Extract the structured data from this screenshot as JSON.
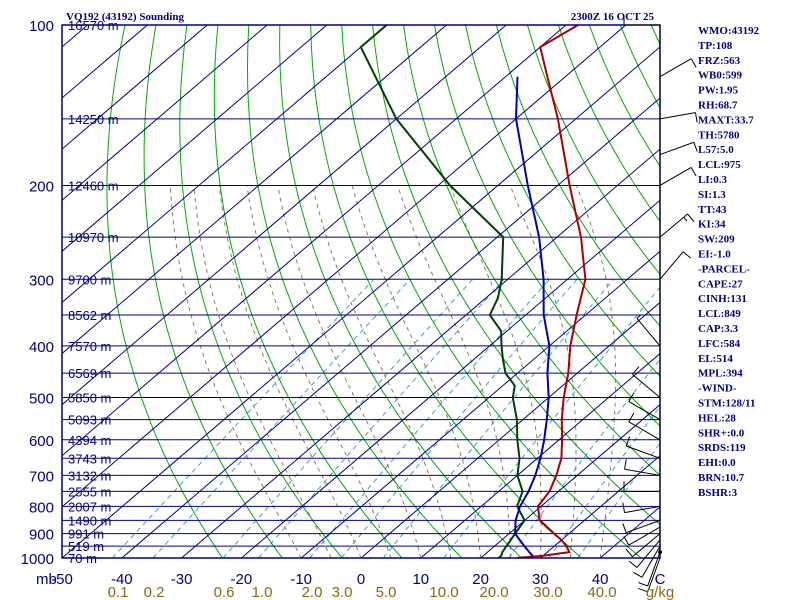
{
  "header": {
    "station": "VQ192 (43192) Sounding",
    "time": "2300Z 16 OCT 25"
  },
  "indices": [
    "WMO:43192",
    "TP:108",
    "FRZ:563",
    "WB0:599",
    "PW:1.95",
    "RH:68.7",
    "MAXT:33.7",
    "TH:5780",
    "L57:5.0",
    "LCL:975",
    "LI:0.3",
    "SI:1.3",
    "TT:43",
    "KI:34",
    "SW:209",
    "EI:-1.0",
    "-PARCEL-",
    "CAPE:27",
    "CINH:131",
    "LCL:849",
    "CAP:3.3",
    "LFC:584",
    "EL:514",
    "MPL:394",
    "-WIND-",
    "STM:128/11",
    "HEL:28",
    "SHR+:0.0",
    "SRDS:119",
    "EHI:0.0",
    "BRN:10.7",
    "BSHR:3"
  ],
  "colors": {
    "frame": "#000080",
    "isobar": "#000080",
    "isotherm": "#000080",
    "dry_adiabat": "#00aa00",
    "moist_adiabat": "#8b7d5a",
    "mixing_ratio": "#3a9fd0",
    "temperature": "#aa0000",
    "dewpoint": "#004000",
    "parcel": "#0000aa",
    "wind_barb": "#000000"
  },
  "chart_data": {
    "type": "line",
    "subtype": "skew-t log-p sounding",
    "yscale": "log",
    "yaxis_reversed": true,
    "ylim": [
      1000,
      100
    ],
    "xlim": [
      -50,
      50
    ],
    "pressure_ticks": [
      100,
      200,
      300,
      400,
      500,
      600,
      700,
      800,
      900,
      1000
    ],
    "pressure_tick_labels": [
      "100",
      "200",
      "300",
      "400",
      "500",
      "600",
      "700",
      "800",
      "900",
      "1000"
    ],
    "height_labels": [
      {
        "p": 100,
        "label": "16570 m"
      },
      {
        "p": 150,
        "label": "14250 m"
      },
      {
        "p": 200,
        "label": "12460 m"
      },
      {
        "p": 250,
        "label": "10970 m"
      },
      {
        "p": 300,
        "label": "9700 m"
      },
      {
        "p": 350,
        "label": "8562 m"
      },
      {
        "p": 400,
        "label": "7570 m"
      },
      {
        "p": 450,
        "label": "6569 m"
      },
      {
        "p": 500,
        "label": "5850 m"
      },
      {
        "p": 550,
        "label": "5093 m"
      },
      {
        "p": 600,
        "label": "4394 m"
      },
      {
        "p": 650,
        "label": "3743 m"
      },
      {
        "p": 700,
        "label": "3132 m"
      },
      {
        "p": 750,
        "label": "2555 m"
      },
      {
        "p": 800,
        "label": "2007 m"
      },
      {
        "p": 850,
        "label": "1490 m"
      },
      {
        "p": 900,
        "label": "991 m"
      },
      {
        "p": 950,
        "label": "519 m"
      },
      {
        "p": 1000,
        "label": "70 m"
      }
    ],
    "x_unit_label": "mb",
    "temperature_ticks": [
      "-50",
      "-40",
      "-30",
      "-20",
      "-10",
      "0",
      "10",
      "20",
      "30",
      "40",
      "C"
    ],
    "mixing_ratio_ticks": [
      "0.1",
      "0.2",
      "0.6",
      "1.0",
      "2.0",
      "3.0",
      "5.0",
      "10.0",
      "20.0",
      "30.0",
      "40.0",
      "g/kg"
    ],
    "series": [
      {
        "name": "Temperature",
        "points": [
          [
            1000,
            26
          ],
          [
            990,
            30
          ],
          [
            975,
            33.7
          ],
          [
            950,
            32
          ],
          [
            925,
            30
          ],
          [
            900,
            27.5
          ],
          [
            875,
            25
          ],
          [
            850,
            22.5
          ],
          [
            800,
            19.5
          ],
          [
            750,
            18.5
          ],
          [
            700,
            16.5
          ],
          [
            650,
            14
          ],
          [
            600,
            10.5
          ],
          [
            550,
            6.5
          ],
          [
            500,
            2.5
          ],
          [
            450,
            -1.5
          ],
          [
            400,
            -6.5
          ],
          [
            350,
            -11.5
          ],
          [
            300,
            -17
          ],
          [
            250,
            -26
          ],
          [
            200,
            -38
          ],
          [
            150,
            -53
          ],
          [
            125,
            -63
          ],
          [
            110,
            -70
          ],
          [
            100,
            -68
          ]
        ]
      },
      {
        "name": "Dewpoint",
        "points": [
          [
            1000,
            23
          ],
          [
            990,
            23
          ],
          [
            975,
            22.5
          ],
          [
            950,
            22
          ],
          [
            925,
            21.5
          ],
          [
            900,
            21
          ],
          [
            850,
            20
          ],
          [
            800,
            16
          ],
          [
            750,
            14
          ],
          [
            700,
            10
          ],
          [
            650,
            7
          ],
          [
            600,
            3
          ],
          [
            550,
            -1
          ],
          [
            500,
            -6
          ],
          [
            475,
            -8
          ],
          [
            450,
            -12
          ],
          [
            425,
            -15
          ],
          [
            400,
            -18
          ],
          [
            375,
            -21
          ],
          [
            350,
            -26
          ],
          [
            325,
            -28
          ],
          [
            300,
            -31
          ],
          [
            250,
            -39
          ],
          [
            200,
            -58
          ],
          [
            150,
            -80
          ],
          [
            110,
            -100
          ],
          [
            100,
            -100
          ]
        ]
      },
      {
        "name": "Parcel",
        "points": [
          [
            1000,
            29
          ],
          [
            975,
            27
          ],
          [
            950,
            25
          ],
          [
            925,
            23
          ],
          [
            900,
            21
          ],
          [
            850,
            18.5
          ],
          [
            800,
            16.5
          ],
          [
            750,
            15
          ],
          [
            700,
            13
          ],
          [
            650,
            10.5
          ],
          [
            600,
            7.5
          ],
          [
            550,
            4
          ],
          [
            500,
            0
          ],
          [
            450,
            -5
          ],
          [
            400,
            -10
          ],
          [
            350,
            -17
          ],
          [
            300,
            -24
          ],
          [
            250,
            -33
          ],
          [
            200,
            -45
          ],
          [
            150,
            -60
          ],
          [
            125,
            -68
          ]
        ]
      }
    ],
    "wind_barbs": [
      {
        "p": 1000,
        "dir": 200,
        "kt": 10
      },
      {
        "p": 975,
        "dir": 200,
        "kt": 10
      },
      {
        "p": 950,
        "dir": 210,
        "kt": 10
      },
      {
        "p": 925,
        "dir": 220,
        "kt": 10
      },
      {
        "p": 900,
        "dir": 230,
        "kt": 10
      },
      {
        "p": 875,
        "dir": 240,
        "kt": 10
      },
      {
        "p": 850,
        "dir": 250,
        "kt": 10
      },
      {
        "p": 800,
        "dir": 260,
        "kt": 10
      },
      {
        "p": 750,
        "dir": 270,
        "kt": 10
      },
      {
        "p": 700,
        "dir": 280,
        "kt": 10
      },
      {
        "p": 650,
        "dir": 290,
        "kt": 10
      },
      {
        "p": 600,
        "dir": 300,
        "kt": 10
      },
      {
        "p": 550,
        "dir": 300,
        "kt": 10
      },
      {
        "p": 500,
        "dir": 310,
        "kt": 10
      },
      {
        "p": 400,
        "dir": 320,
        "kt": 5
      },
      {
        "p": 300,
        "dir": 40,
        "kt": 10
      },
      {
        "p": 250,
        "dir": 50,
        "kt": 15
      },
      {
        "p": 200,
        "dir": 60,
        "kt": 10
      },
      {
        "p": 175,
        "dir": 70,
        "kt": 10
      },
      {
        "p": 150,
        "dir": 80,
        "kt": 10
      },
      {
        "p": 125,
        "dir": 60,
        "kt": 10
      },
      {
        "p": 100,
        "dir": 270,
        "kt": 10
      }
    ]
  }
}
